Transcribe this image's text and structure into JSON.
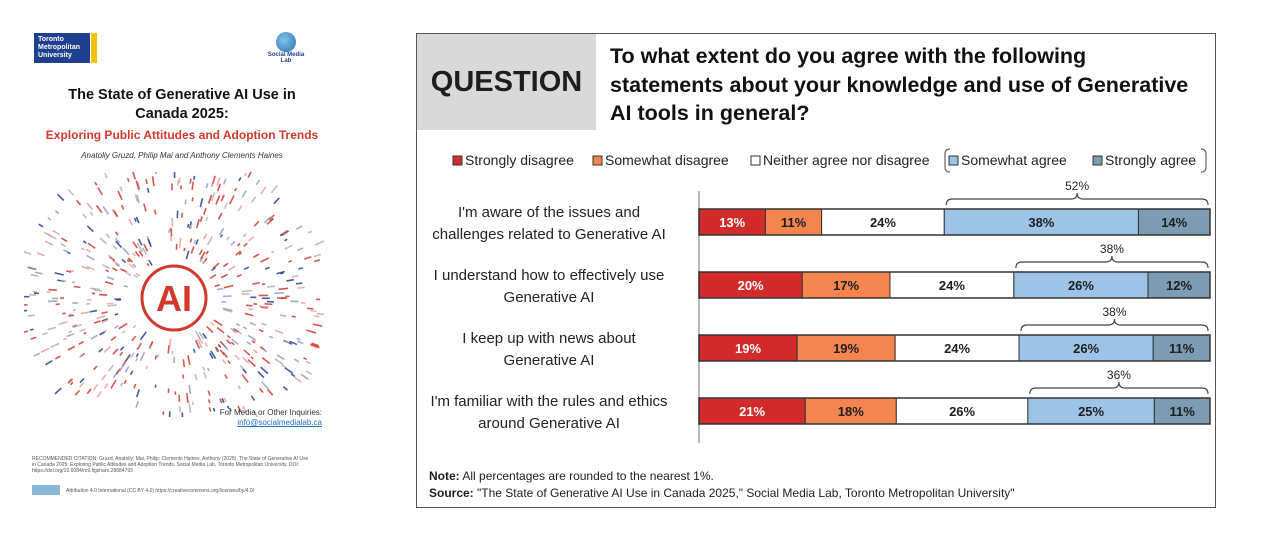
{
  "cover": {
    "tmu_logo_lines": [
      "Toronto",
      "Metropolitan",
      "University"
    ],
    "sml_logo_text": "Social Media Lab",
    "title_line1": "The State of Generative AI Use in",
    "title_line2": "Canada 2025:",
    "subtitle": "Exploring Public Attitudes and Adoption Trends",
    "authors": "Anatoliy Gruzd, Philip Mai and Anthony Clements Haines",
    "center_mark": "AI",
    "media_label": "For Media or Other Inquiries:",
    "media_email": "info@socialmedialab.ca",
    "citation": "RECOMMENDED CITATION: Gruzd, Anatoliy; Mai, Philip; Clements Haines, Anthony (2025). The State of Generative AI Use in Canada 2025: Exploring Public Attitudes and Adoption Trends. Social Media Lab, Toronto Metropolitan University. DOI: https://doi.org/10.6084/m9.figshare.28684793",
    "license": "Attribution 4.0 International (CC BY 4.0) https://creativecommons.org/licenses/by/4.0/",
    "colors": {
      "red": "#d1392a",
      "blue": "#1f3f8f"
    }
  },
  "panel": {
    "question_label": "QUESTION",
    "question_line1": "To what extent do you agree with the following",
    "question_line2": "statements about your knowledge and use of Generative",
    "question_line3": "AI tools in general?",
    "note_label": "Note:",
    "note_text": "All percentages are rounded to the nearest 1%.",
    "source_label": "Source:",
    "source_text": "\"The State of Generative AI Use in Canada 2025,\" Social Media Lab, Toronto Metropolitan University\""
  },
  "chart_data": {
    "type": "bar",
    "orientation": "horizontal-stacked-100",
    "legend": [
      {
        "name": "Strongly disagree",
        "color": "#d22b2b"
      },
      {
        "name": "Somewhat disagree",
        "color": "#f4854f"
      },
      {
        "name": "Neither agree nor disagree",
        "color": "#ffffff"
      },
      {
        "name": "Somewhat agree",
        "color": "#9dc3e6"
      },
      {
        "name": "Strongly agree",
        "color": "#7b9cb3"
      }
    ],
    "legend_position": "top",
    "categories": [
      [
        "I'm aware of the issues and",
        "challenges related to Generative AI"
      ],
      [
        "I understand how to effectively use",
        "Generative AI"
      ],
      [
        "I keep up with news about",
        "Generative AI"
      ],
      [
        "I'm familiar with the rules and ethics",
        "around Generative AI"
      ]
    ],
    "values": [
      [
        13,
        11,
        24,
        38,
        14
      ],
      [
        20,
        17,
        24,
        26,
        12
      ],
      [
        19,
        19,
        24,
        26,
        11
      ],
      [
        21,
        18,
        26,
        25,
        11
      ]
    ],
    "labels": [
      [
        "13%",
        "11%",
        "24%",
        "38%",
        "14%"
      ],
      [
        "20%",
        "17%",
        "24%",
        "26%",
        "12%"
      ],
      [
        "19%",
        "19%",
        "24%",
        "26%",
        "11%"
      ],
      [
        "21%",
        "18%",
        "26%",
        "25%",
        "11%"
      ]
    ],
    "agree_totals": [
      "52%",
      "38%",
      "38%",
      "36%"
    ]
  }
}
